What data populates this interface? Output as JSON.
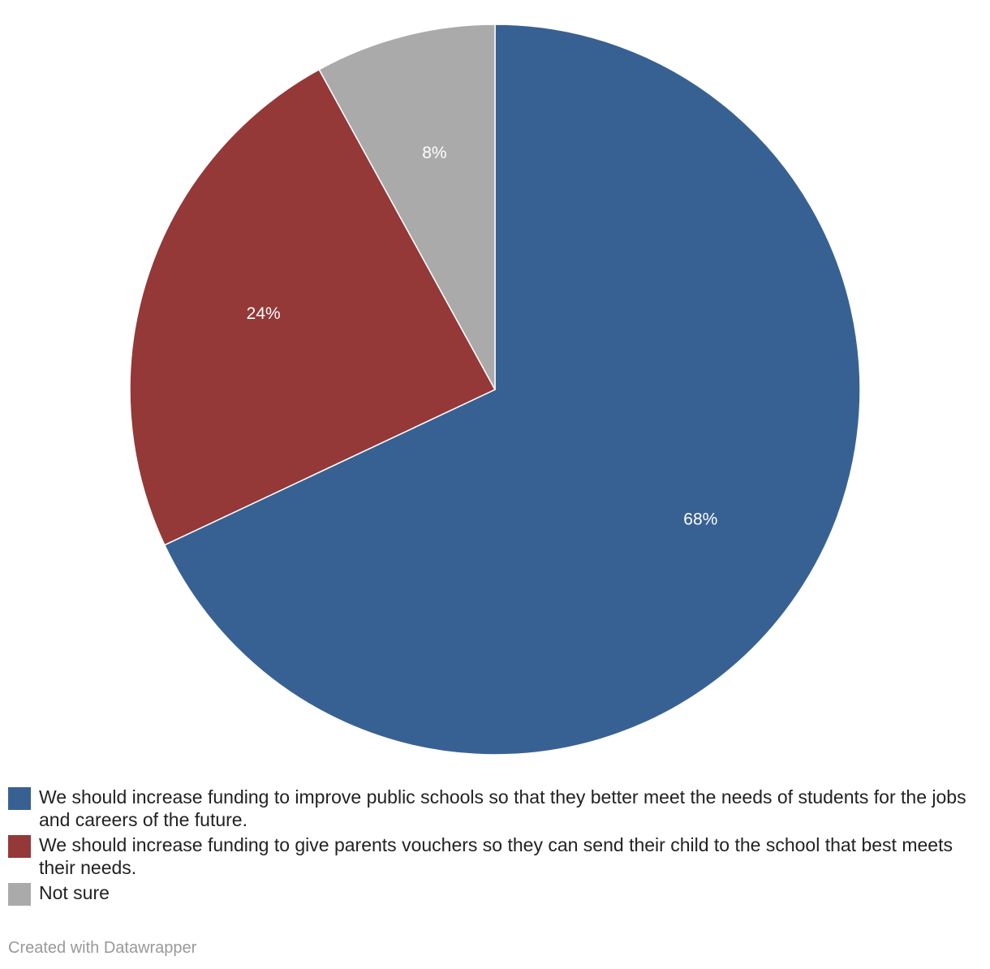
{
  "colors": {
    "blue": "#386193",
    "red": "#943838",
    "gray": "#aaaaaa"
  },
  "chart_data": {
    "type": "pie",
    "slices": [
      {
        "name": "We should increase funding to improve public schools so that they better meet the needs of students for the jobs and careers of the future.",
        "value": 68,
        "label": "68%",
        "color": "#386193"
      },
      {
        "name": "We should increase funding to give parents vouchers so they can send their child to the school that best meets their needs.",
        "value": 24,
        "label": "24%",
        "color": "#943838"
      },
      {
        "name": "Not sure",
        "value": 8,
        "label": "8%",
        "color": "#aaaaaa"
      }
    ],
    "legend_position": "bottom-left"
  },
  "footer": {
    "credit": "Created with Datawrapper"
  }
}
